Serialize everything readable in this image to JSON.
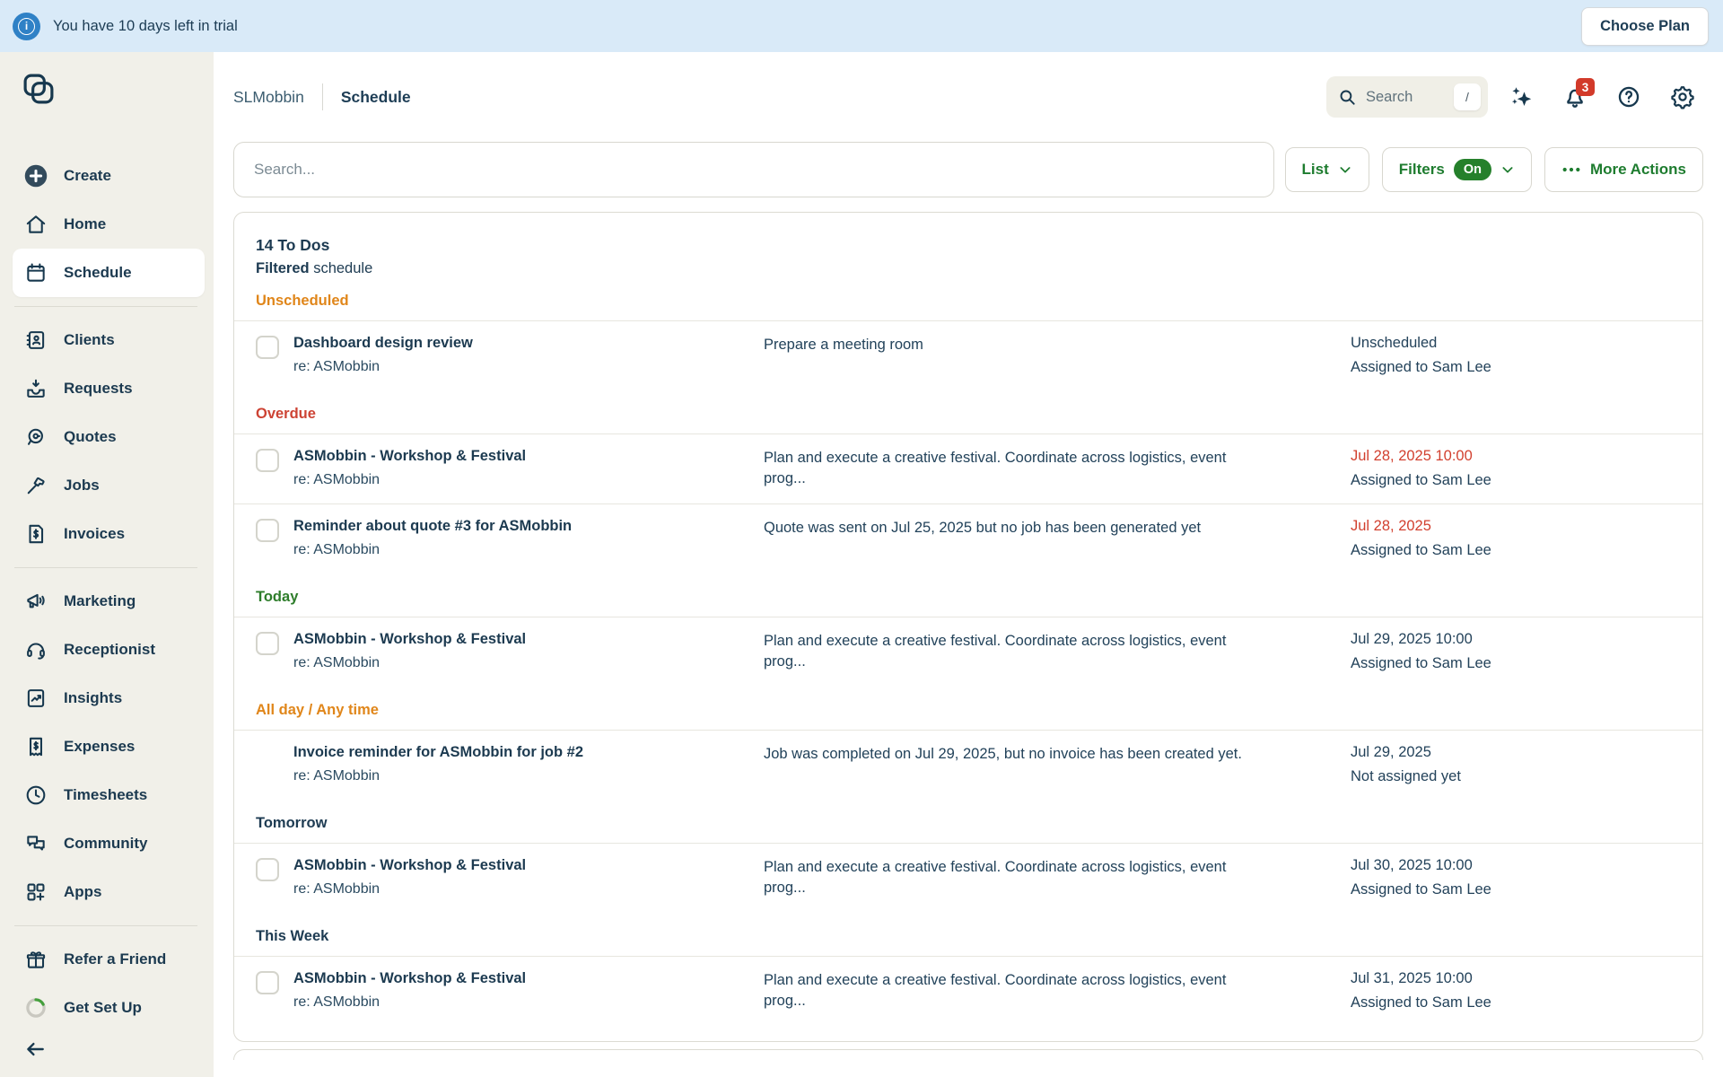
{
  "banner": {
    "text": "You have 10 days left in trial",
    "button": "Choose Plan",
    "bg": "#d9eaf8",
    "icon_blue": "#2f81c6"
  },
  "sidebar": {
    "groups": [
      [
        {
          "label": "Create",
          "icon": "plus-circle"
        },
        {
          "label": "Home",
          "icon": "home"
        },
        {
          "label": "Schedule",
          "icon": "calendar",
          "active": true
        }
      ],
      [
        {
          "label": "Clients",
          "icon": "address-book"
        },
        {
          "label": "Requests",
          "icon": "inbox-down"
        },
        {
          "label": "Quotes",
          "icon": "tape-measure"
        },
        {
          "label": "Jobs",
          "icon": "hammer"
        },
        {
          "label": "Invoices",
          "icon": "invoice-doc"
        }
      ],
      [
        {
          "label": "Marketing",
          "icon": "megaphone"
        },
        {
          "label": "Receptionist",
          "icon": "headset"
        },
        {
          "label": "Insights",
          "icon": "chart-doc"
        },
        {
          "label": "Expenses",
          "icon": "receipt"
        },
        {
          "label": "Timesheets",
          "icon": "clock"
        },
        {
          "label": "Community",
          "icon": "chat-bubbles"
        },
        {
          "label": "Apps",
          "icon": "apps-plus"
        }
      ],
      [
        {
          "label": "Refer a Friend",
          "icon": "gift"
        },
        {
          "label": "Get Set Up",
          "icon": "progress-ring"
        }
      ]
    ]
  },
  "header": {
    "company": "SLMobbin",
    "page": "Schedule",
    "search_placeholder": "Search",
    "search_shortcut": "/",
    "notification_count": "3"
  },
  "toolbar": {
    "search_placeholder": "Search...",
    "view_label": "List",
    "filters_label": "Filters",
    "filters_state": "On",
    "more_actions_label": "More Actions"
  },
  "list": {
    "count_title": "14 To Dos",
    "subtitle_bold": "Filtered",
    "subtitle_rest": " schedule",
    "colors": {
      "orange": "#e0861a",
      "red": "#cd4334",
      "green": "#2e7d2b",
      "dark": "#1d3b52",
      "date_red": "#d2402f"
    },
    "sections": [
      {
        "label": "Unscheduled",
        "color": "orange",
        "rows": [
          {
            "checkbox": true,
            "title": "Dashboard design review",
            "ref": "re: ASMobbin",
            "desc": "Prepare a meeting room",
            "when": "Unscheduled",
            "when_red": false,
            "assigned": "Assigned to Sam Lee"
          }
        ]
      },
      {
        "label": "Overdue",
        "color": "red",
        "rows": [
          {
            "checkbox": true,
            "title": "ASMobbin - Workshop & Festival",
            "ref": "re: ASMobbin",
            "desc": "Plan and execute a creative festival. Coordinate across logistics, event\nprog...",
            "when": "Jul 28, 2025 10:00",
            "when_red": true,
            "assigned": "Assigned to Sam Lee"
          },
          {
            "checkbox": true,
            "title": "Reminder about quote #3 for ASMobbin",
            "ref": "re: ASMobbin",
            "desc": "Quote was sent on Jul 25, 2025 but no job has been generated yet",
            "when": "Jul 28, 2025",
            "when_red": true,
            "assigned": "Assigned to Sam Lee"
          }
        ]
      },
      {
        "label": "Today",
        "color": "green",
        "rows": [
          {
            "checkbox": true,
            "title": "ASMobbin - Workshop & Festival",
            "ref": "re: ASMobbin",
            "desc": "Plan and execute a creative festival. Coordinate across logistics, event\nprog...",
            "when": "Jul 29, 2025 10:00",
            "when_red": false,
            "assigned": "Assigned to Sam Lee"
          }
        ]
      },
      {
        "label": "All day / Any time",
        "color": "orange",
        "rows": [
          {
            "checkbox": false,
            "title": "Invoice reminder for ASMobbin for job #2",
            "ref": "re: ASMobbin",
            "desc": "Job was completed on Jul 29, 2025, but no invoice has been created yet.",
            "when": "Jul 29, 2025",
            "when_red": false,
            "assigned": "Not assigned yet"
          }
        ]
      },
      {
        "label": "Tomorrow",
        "color": "dark",
        "rows": [
          {
            "checkbox": true,
            "title": "ASMobbin - Workshop & Festival",
            "ref": "re: ASMobbin",
            "desc": "Plan and execute a creative festival. Coordinate across logistics, event\nprog...",
            "when": "Jul 30, 2025 10:00",
            "when_red": false,
            "assigned": "Assigned to Sam Lee"
          }
        ]
      },
      {
        "label": "This Week",
        "color": "dark",
        "rows": [
          {
            "checkbox": true,
            "title": "ASMobbin - Workshop & Festival",
            "ref": "re: ASMobbin",
            "desc": "Plan and execute a creative festival. Coordinate across logistics, event\nprog...",
            "when": "Jul 31, 2025 10:00",
            "when_red": false,
            "assigned": "Assigned to Sam Lee"
          }
        ]
      }
    ]
  }
}
